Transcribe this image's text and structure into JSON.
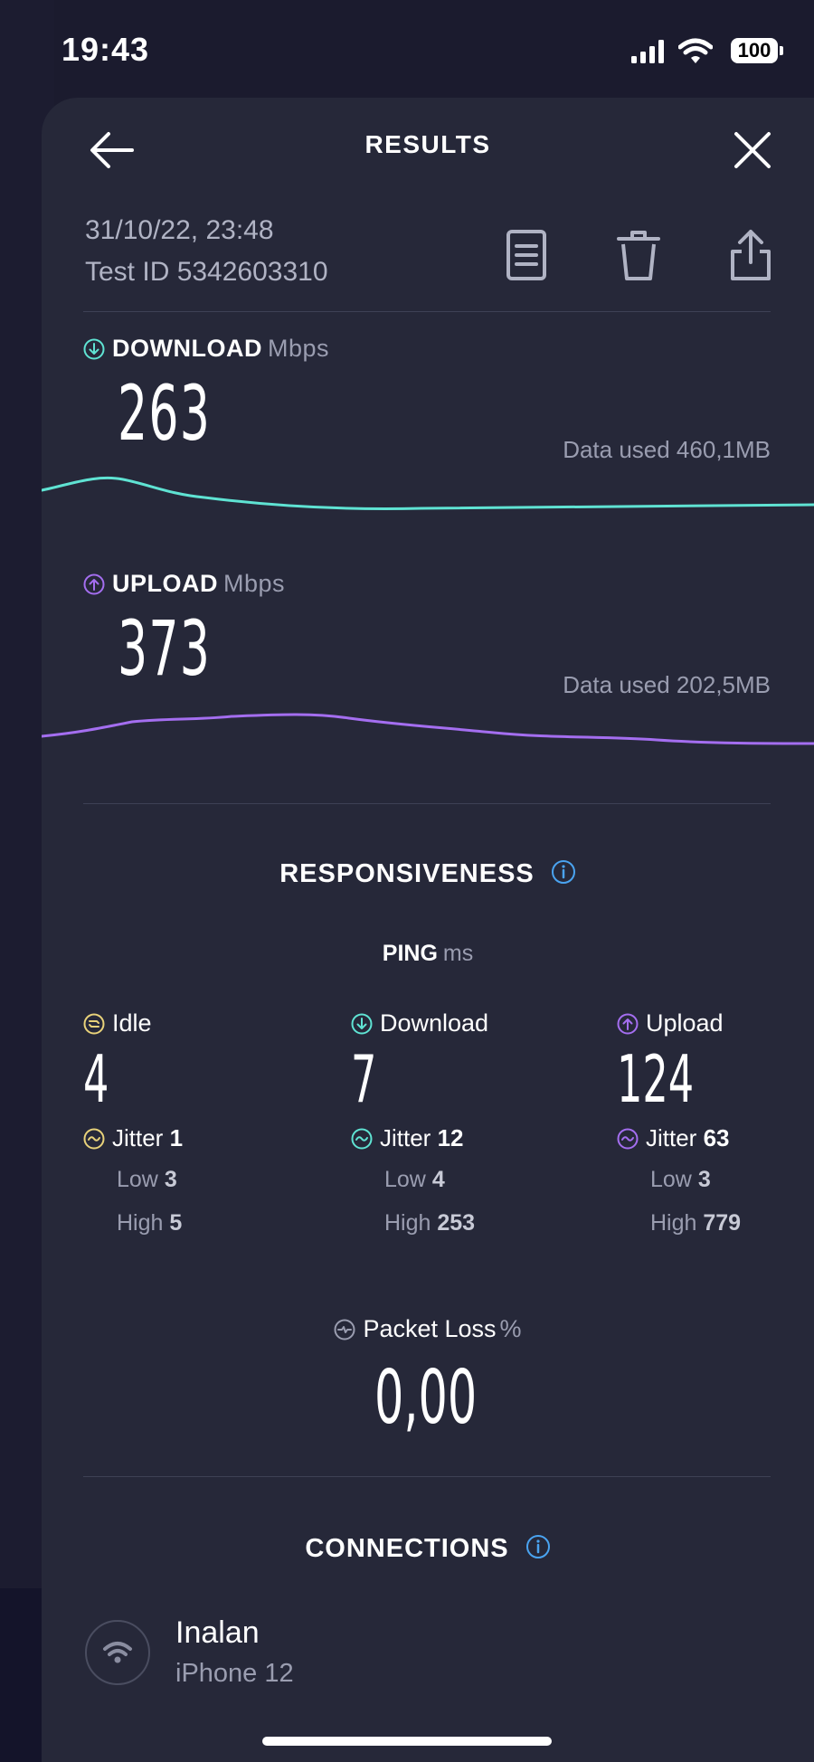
{
  "status_bar": {
    "time": "19:43",
    "battery": "100"
  },
  "header": {
    "title": "RESULTS"
  },
  "test": {
    "date": "31/10/22, 23:48",
    "test_id": "Test ID 5342603310"
  },
  "download": {
    "label": "DOWNLOAD",
    "unit": "Mbps",
    "value": "263",
    "data_used": "Data used 460,1MB",
    "color": "#5fe3d3"
  },
  "upload": {
    "label": "UPLOAD",
    "unit": "Mbps",
    "value": "373",
    "data_used": "Data used 202,5MB",
    "color": "#a46ef0"
  },
  "responsiveness": {
    "title": "RESPONSIVENESS",
    "ping_label": "PING",
    "ping_unit": "ms",
    "columns": [
      {
        "label": "Idle",
        "value": "4",
        "jitter_label": "Jitter",
        "jitter": "1",
        "low_label": "Low",
        "low": "3",
        "high_label": "High",
        "high": "5",
        "color": "#e8d27a"
      },
      {
        "label": "Download",
        "value": "7",
        "jitter_label": "Jitter",
        "jitter": "12",
        "low_label": "Low",
        "low": "4",
        "high_label": "High",
        "high": "253",
        "color": "#5fe3d3"
      },
      {
        "label": "Upload",
        "value": "124",
        "jitter_label": "Jitter",
        "jitter": "63",
        "low_label": "Low",
        "low": "3",
        "high_label": "High",
        "high": "779",
        "color": "#a46ef0"
      }
    ],
    "packet_loss_label": "Packet Loss",
    "packet_loss_unit": "%",
    "packet_loss": "0,00"
  },
  "connections": {
    "title": "CONNECTIONS",
    "name": "Inalan",
    "device": "iPhone 12"
  },
  "accent_info": "#4aa3f0"
}
